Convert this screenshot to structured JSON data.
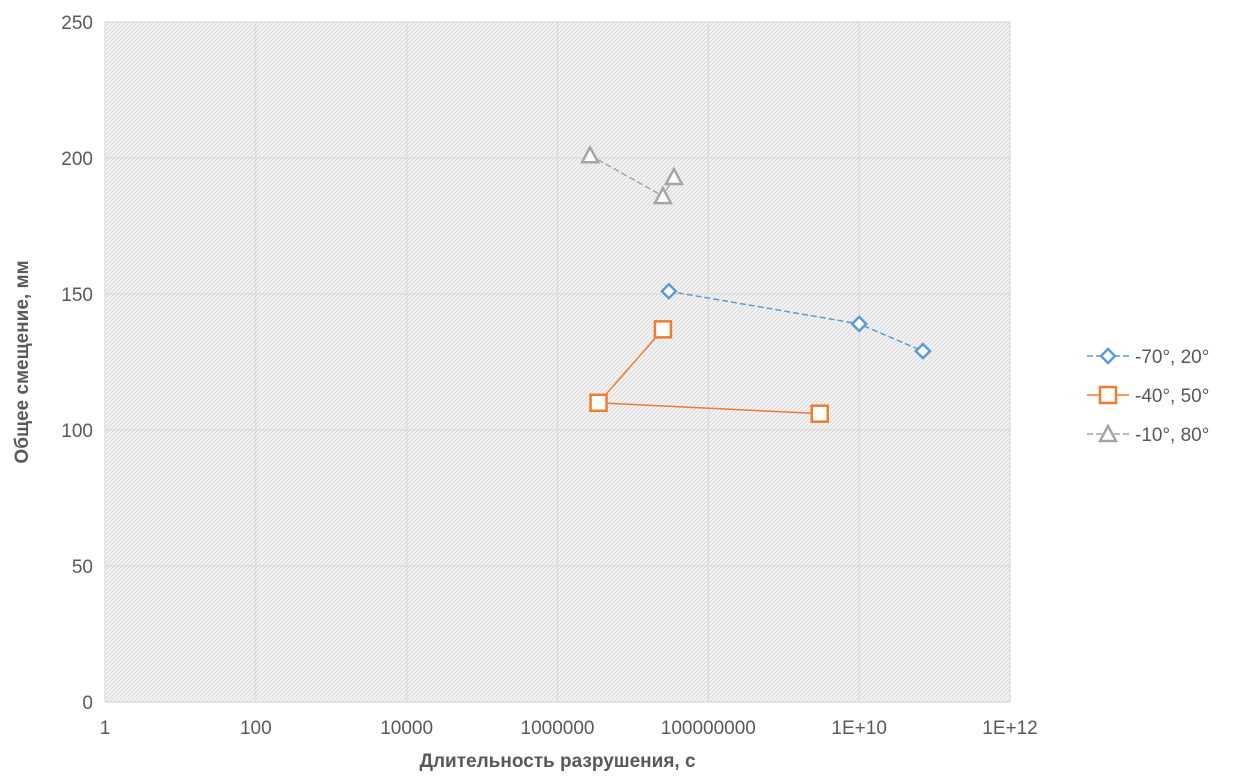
{
  "chart_data": {
    "type": "line",
    "xscale": "log",
    "xlim": [
      1,
      1000000000000
    ],
    "ylim": [
      0,
      250
    ],
    "x_ticks": [
      1,
      100,
      10000,
      1000000,
      100000000,
      10000000000,
      1000000000000
    ],
    "x_tick_labels": [
      "1",
      "100",
      "10000",
      "1000000",
      "100000000",
      "1E+10",
      "1E+12"
    ],
    "y_ticks": [
      0,
      50,
      100,
      150,
      200,
      250
    ],
    "y_tick_labels": [
      "0",
      "50",
      "100",
      "150",
      "200",
      "250"
    ],
    "xlabel": "Длительность разрушения, с",
    "ylabel": "Общее смещение, мм",
    "grid": true,
    "legend_position": "right",
    "series": [
      {
        "name": "-70°, 20°",
        "color": "#5B9BD5",
        "marker": "diamond",
        "line": "dashed",
        "points": [
          [
            30000000,
            151
          ],
          [
            10000000000,
            139
          ],
          [
            70000000000,
            129
          ]
        ]
      },
      {
        "name": "-40°, 50°",
        "color": "#ED7D31",
        "marker": "square",
        "line": "solid",
        "points": [
          [
            25000000,
            137
          ],
          [
            3500000,
            110
          ],
          [
            3000000000,
            106
          ]
        ]
      },
      {
        "name": "-10°, 80°",
        "color": "#A5A5A5",
        "marker": "triangle",
        "line": "dashed",
        "points": [
          [
            2700000,
            201
          ],
          [
            25000000,
            186
          ],
          [
            35000000,
            193
          ]
        ]
      }
    ]
  }
}
